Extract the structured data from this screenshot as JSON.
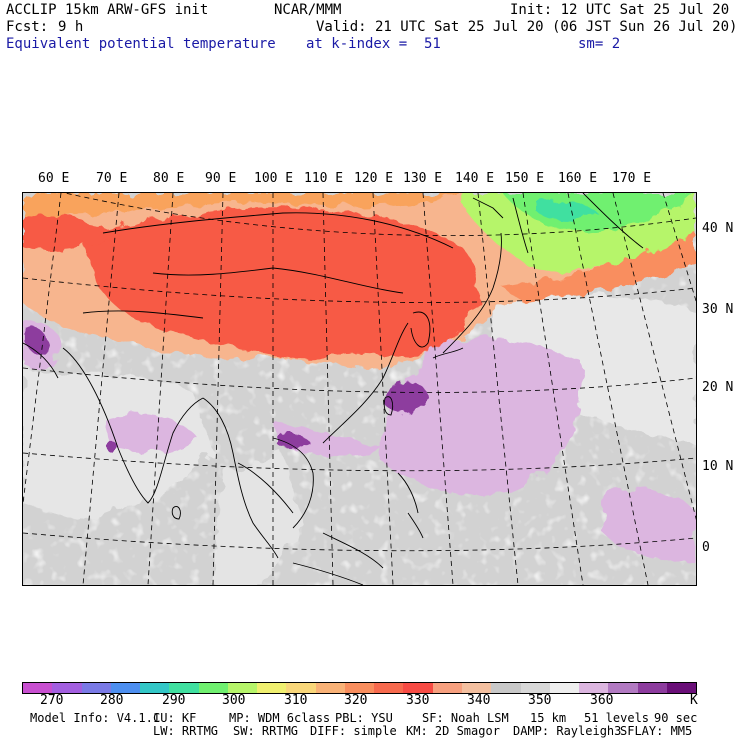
{
  "header": {
    "model_title": "ACCLIP 15km ARW-GFS init",
    "org": "NCAR/MMM",
    "init": "Init: 12 UTC Sat 25 Jul 20",
    "fcst_label": "Fcst:",
    "fcst_value": "9 h",
    "valid": "Valid: 21 UTC Sat 25 Jul 20 (06 JST Sun 26 Jul 20)",
    "field": "Equivalent potential temperature",
    "level": "at k-index =  51",
    "smooth": "sm= 2"
  },
  "map": {
    "lon_labels": [
      "60 E",
      "70 E",
      "80 E",
      "90 E",
      "100 E",
      "110 E",
      "120 E",
      "130 E",
      "140 E",
      "150 E",
      "160 E",
      "170 E"
    ],
    "lat_labels": [
      "40 N",
      "30 N",
      "20 N",
      "10 N",
      "0"
    ]
  },
  "colorbar": {
    "colors": [
      "#c84fd0",
      "#a35fe0",
      "#7a7ae6",
      "#4d8ff0",
      "#33c7c7",
      "#40e0a0",
      "#70f070",
      "#b6f56a",
      "#f0f070",
      "#f9d77a",
      "#f9b277",
      "#f98e5e",
      "#f76a4e",
      "#f74b44",
      "#f7a07f",
      "#f4c0a0",
      "#c8c8c8",
      "#d8d8d8",
      "#eeeeee",
      "#dcb6e0",
      "#b27ac2",
      "#8d3c9e",
      "#6a0f78"
    ],
    "labels": [
      "270",
      "280",
      "290",
      "300",
      "310",
      "320",
      "330",
      "340",
      "350",
      "360",
      "K"
    ]
  },
  "footer": {
    "line1": [
      "Model Info: V4.1.1",
      "CU: KF",
      "MP: WDM 6class",
      "PBL: YSU",
      "SF: Noah LSM",
      "15 km",
      "51 levels",
      "90 sec"
    ],
    "line2": [
      "LW: RRTMG",
      "SW: RRTMG",
      "DIFF: simple",
      "KM: 2D Smagor",
      "DAMP: Rayleigh3",
      "SFLAY: MM5"
    ]
  }
}
